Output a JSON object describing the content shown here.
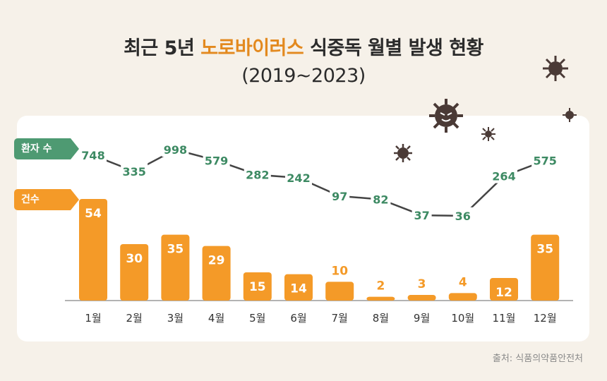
{
  "title": {
    "line1_prefix": "최근 5년 ",
    "line1_highlight": "노로바이러스",
    "line1_suffix": " 식중독 월별 발생 현황",
    "line2": "(2019~2023)"
  },
  "legend": {
    "patients_label": "환자 수",
    "cases_label": "건수"
  },
  "source": "출처: 식품의약품안전처",
  "colors": {
    "bar": "#f49a28",
    "line": "#444444",
    "patient_label": "#3d8a63",
    "highlight": "#e3891e"
  },
  "chart_data": {
    "type": "bar+line",
    "categories": [
      "1월",
      "2월",
      "3월",
      "4월",
      "5월",
      "6월",
      "7월",
      "8월",
      "9월",
      "10월",
      "11월",
      "12월"
    ],
    "series": [
      {
        "name": "건수",
        "type": "bar",
        "values": [
          54,
          30,
          35,
          29,
          15,
          14,
          10,
          2,
          3,
          4,
          12,
          35
        ]
      },
      {
        "name": "환자 수",
        "type": "line",
        "values": [
          748,
          335,
          998,
          579,
          282,
          242,
          97,
          82,
          37,
          36,
          264,
          575
        ]
      }
    ],
    "title": "최근 5년 노로바이러스 식중독 월별 발생 현황 (2019~2023)"
  }
}
